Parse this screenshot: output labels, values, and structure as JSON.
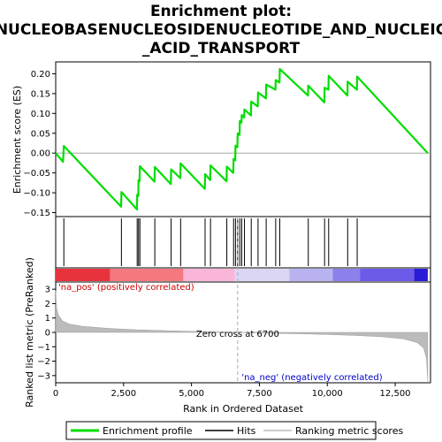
{
  "chart_data": {
    "type": "line",
    "title_lines": [
      "Enrichment plot:",
      "NUCLEOBASENUCLEOSIDENUCLEOTIDE_AND_NUCLEIC",
      "_ACID_TRANSPORT"
    ],
    "xlabel": "Rank in Ordered Dataset",
    "ylabel_top": "Enrichment score (ES)",
    "ylabel_bottom": "Ranked list metric (PreRanked)",
    "x_ticks": [
      0,
      2500,
      5000,
      7500,
      10000,
      12500
    ],
    "x_tick_labels": [
      "0",
      "2,500",
      "5,000",
      "7,500",
      "10,000",
      "12,500"
    ],
    "es_y_ticks": [
      -0.15,
      -0.1,
      -0.05,
      0.0,
      0.05,
      0.1,
      0.15,
      0.2
    ],
    "es_y_tick_labels": [
      "−0.15",
      "−0.10",
      "−0.05",
      "0.00",
      "0.05",
      "0.10",
      "0.15",
      "0.20"
    ],
    "es_ylim": [
      -0.16,
      0.23
    ],
    "metric_y_ticks": [
      -3,
      -2,
      -1,
      0,
      1,
      2,
      3
    ],
    "metric_y_tick_labels": [
      "−3",
      "−2",
      "−1",
      "0",
      "1",
      "2",
      "3"
    ],
    "metric_ylim": [
      -3.5,
      3.5
    ],
    "xlim": [
      0,
      13800
    ],
    "n_ranks": 13700,
    "hits": [
      300,
      2420,
      3000,
      3050,
      3100,
      3650,
      4250,
      4600,
      5500,
      5700,
      6300,
      6550,
      6620,
      6700,
      6780,
      6850,
      6950,
      7200,
      7450,
      7750,
      8100,
      8250,
      9300,
      9900,
      10050,
      10750,
      11100
    ],
    "running_es": [
      {
        "x": 0,
        "y": 0.0
      },
      {
        "x": 270,
        "y": -0.022
      },
      {
        "x": 300,
        "y": 0.018
      },
      {
        "x": 2410,
        "y": -0.135
      },
      {
        "x": 2420,
        "y": -0.098
      },
      {
        "x": 2990,
        "y": -0.142
      },
      {
        "x": 3000,
        "y": -0.105
      },
      {
        "x": 3040,
        "y": -0.108
      },
      {
        "x": 3050,
        "y": -0.068
      },
      {
        "x": 3090,
        "y": -0.071
      },
      {
        "x": 3100,
        "y": -0.033
      },
      {
        "x": 3640,
        "y": -0.072
      },
      {
        "x": 3650,
        "y": -0.035
      },
      {
        "x": 4240,
        "y": -0.078
      },
      {
        "x": 4250,
        "y": -0.041
      },
      {
        "x": 4590,
        "y": -0.063
      },
      {
        "x": 4600,
        "y": -0.026
      },
      {
        "x": 5490,
        "y": -0.09
      },
      {
        "x": 5500,
        "y": -0.053
      },
      {
        "x": 5690,
        "y": -0.068
      },
      {
        "x": 5700,
        "y": -0.031
      },
      {
        "x": 6290,
        "y": -0.071
      },
      {
        "x": 6300,
        "y": -0.034
      },
      {
        "x": 6540,
        "y": -0.05
      },
      {
        "x": 6550,
        "y": -0.015
      },
      {
        "x": 6610,
        "y": -0.018
      },
      {
        "x": 6620,
        "y": 0.019
      },
      {
        "x": 6690,
        "y": 0.015
      },
      {
        "x": 6700,
        "y": 0.05
      },
      {
        "x": 6770,
        "y": 0.046
      },
      {
        "x": 6780,
        "y": 0.081
      },
      {
        "x": 6840,
        "y": 0.077
      },
      {
        "x": 6850,
        "y": 0.096
      },
      {
        "x": 6940,
        "y": 0.09
      },
      {
        "x": 6950,
        "y": 0.11
      },
      {
        "x": 7190,
        "y": 0.095
      },
      {
        "x": 7200,
        "y": 0.13
      },
      {
        "x": 7440,
        "y": 0.118
      },
      {
        "x": 7450,
        "y": 0.153
      },
      {
        "x": 7740,
        "y": 0.138
      },
      {
        "x": 7750,
        "y": 0.173
      },
      {
        "x": 8090,
        "y": 0.16
      },
      {
        "x": 8100,
        "y": 0.184
      },
      {
        "x": 8240,
        "y": 0.178
      },
      {
        "x": 8250,
        "y": 0.212
      },
      {
        "x": 9290,
        "y": 0.145
      },
      {
        "x": 9300,
        "y": 0.17
      },
      {
        "x": 9890,
        "y": 0.128
      },
      {
        "x": 9900,
        "y": 0.165
      },
      {
        "x": 10040,
        "y": 0.16
      },
      {
        "x": 10050,
        "y": 0.195
      },
      {
        "x": 10740,
        "y": 0.145
      },
      {
        "x": 10750,
        "y": 0.18
      },
      {
        "x": 11090,
        "y": 0.16
      },
      {
        "x": 11100,
        "y": 0.193
      },
      {
        "x": 13700,
        "y": 0.0
      }
    ],
    "ranked_metric": [
      {
        "x": 0,
        "y": 2.9
      },
      {
        "x": 30,
        "y": 1.7
      },
      {
        "x": 100,
        "y": 1.2
      },
      {
        "x": 250,
        "y": 0.8
      },
      {
        "x": 500,
        "y": 0.58
      },
      {
        "x": 1000,
        "y": 0.42
      },
      {
        "x": 2000,
        "y": 0.27
      },
      {
        "x": 3000,
        "y": 0.18
      },
      {
        "x": 4000,
        "y": 0.12
      },
      {
        "x": 5000,
        "y": 0.07
      },
      {
        "x": 6000,
        "y": 0.03
      },
      {
        "x": 6700,
        "y": 0.0
      },
      {
        "x": 8000,
        "y": -0.06
      },
      {
        "x": 9000,
        "y": -0.1
      },
      {
        "x": 10000,
        "y": -0.15
      },
      {
        "x": 11000,
        "y": -0.21
      },
      {
        "x": 12000,
        "y": -0.3
      },
      {
        "x": 12800,
        "y": -0.45
      },
      {
        "x": 13300,
        "y": -0.7
      },
      {
        "x": 13550,
        "y": -1.1
      },
      {
        "x": 13650,
        "y": -1.8
      },
      {
        "x": 13700,
        "y": -3.4
      }
    ],
    "heat_segments": [
      {
        "from": 0,
        "to": 2000,
        "color": "#e8323c"
      },
      {
        "from": 2000,
        "to": 4700,
        "color": "#f5787e"
      },
      {
        "from": 4700,
        "to": 6600,
        "color": "#f9b6d8"
      },
      {
        "from": 6600,
        "to": 8600,
        "color": "#dcd6f5"
      },
      {
        "from": 8600,
        "to": 10200,
        "color": "#b9b2f0"
      },
      {
        "from": 10200,
        "to": 11200,
        "color": "#8c80ec"
      },
      {
        "from": 11200,
        "to": 13200,
        "color": "#6b5be8"
      },
      {
        "from": 13200,
        "to": 13700,
        "color": "#2a1bd6"
      }
    ],
    "zero_cross_rank": 6700,
    "zero_cross_label": "Zero cross at 6700",
    "pos_label": "'na_pos' (positively correlated)",
    "neg_label": "'na_neg' (negatively correlated)",
    "legend": [
      {
        "label": "Enrichment profile",
        "color": "#00dd00"
      },
      {
        "label": "Hits",
        "color": "#000000"
      },
      {
        "label": "Ranking metric scores",
        "color": "#bbbbbb"
      }
    ],
    "colors": {
      "es_line": "#00dd00",
      "hit": "#000000",
      "metric_fill": "#bbbbbb",
      "zero_line": "#aaaaaa",
      "pos_label": "#cc0000",
      "neg_label": "#0000cc"
    }
  }
}
